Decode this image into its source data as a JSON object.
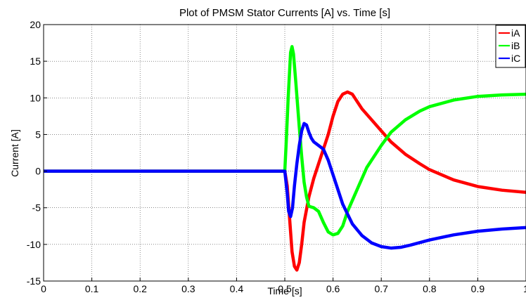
{
  "chart_data": {
    "type": "line",
    "title": "Plot of PMSM Stator Currents [A] vs. Time [s]",
    "xlabel": "Time [s]",
    "ylabel": "Current [A]",
    "xlim": [
      0,
      1
    ],
    "ylim": [
      -15,
      20
    ],
    "grid": true,
    "legend_position": "top-right",
    "x_ticks": [
      0,
      0.1,
      0.2,
      0.3,
      0.4,
      0.5,
      0.6,
      0.7,
      0.8,
      0.9,
      1
    ],
    "x_tick_labels": [
      "0",
      "0.1",
      "0.2",
      "0.3",
      "0.4",
      "0.5",
      "0.6",
      "0.7",
      "0.8",
      "0.9",
      "1"
    ],
    "y_ticks": [
      -15,
      -10,
      -5,
      0,
      5,
      10,
      15,
      20
    ],
    "y_tick_labels": [
      "-15",
      "-10",
      "-5",
      "0",
      "5",
      "10",
      "15",
      "20"
    ],
    "series": [
      {
        "name": "iA",
        "color": "#ff0000",
        "points": [
          [
            0,
            0
          ],
          [
            0.5,
            0
          ],
          [
            0.505,
            -2
          ],
          [
            0.51,
            -6.5
          ],
          [
            0.515,
            -11
          ],
          [
            0.52,
            -13
          ],
          [
            0.525,
            -13.5
          ],
          [
            0.53,
            -12.5
          ],
          [
            0.535,
            -10
          ],
          [
            0.54,
            -7
          ],
          [
            0.55,
            -3.5
          ],
          [
            0.56,
            -1
          ],
          [
            0.57,
            1
          ],
          [
            0.58,
            3
          ],
          [
            0.59,
            5
          ],
          [
            0.6,
            7.5
          ],
          [
            0.61,
            9.5
          ],
          [
            0.62,
            10.5
          ],
          [
            0.63,
            10.8
          ],
          [
            0.64,
            10.5
          ],
          [
            0.65,
            9.5
          ],
          [
            0.66,
            8.5
          ],
          [
            0.68,
            7
          ],
          [
            0.7,
            5.5
          ],
          [
            0.72,
            4
          ],
          [
            0.75,
            2.3
          ],
          [
            0.78,
            1
          ],
          [
            0.8,
            0.2
          ],
          [
            0.85,
            -1.2
          ],
          [
            0.9,
            -2.1
          ],
          [
            0.95,
            -2.6
          ],
          [
            1.0,
            -2.9
          ]
        ]
      },
      {
        "name": "iB",
        "color": "#00ff00",
        "points": [
          [
            0,
            0
          ],
          [
            0.5,
            0
          ],
          [
            0.503,
            4
          ],
          [
            0.507,
            10
          ],
          [
            0.512,
            16.2
          ],
          [
            0.515,
            17
          ],
          [
            0.518,
            16
          ],
          [
            0.523,
            12
          ],
          [
            0.53,
            6
          ],
          [
            0.535,
            2
          ],
          [
            0.54,
            -1.5
          ],
          [
            0.545,
            -3.5
          ],
          [
            0.55,
            -4.8
          ],
          [
            0.56,
            -5
          ],
          [
            0.57,
            -5.5
          ],
          [
            0.58,
            -7
          ],
          [
            0.59,
            -8.3
          ],
          [
            0.6,
            -8.7
          ],
          [
            0.61,
            -8.5
          ],
          [
            0.62,
            -7.5
          ],
          [
            0.63,
            -5.5
          ],
          [
            0.65,
            -2.5
          ],
          [
            0.67,
            0.5
          ],
          [
            0.7,
            3.5
          ],
          [
            0.72,
            5.3
          ],
          [
            0.75,
            7
          ],
          [
            0.78,
            8.2
          ],
          [
            0.8,
            8.8
          ],
          [
            0.85,
            9.7
          ],
          [
            0.9,
            10.2
          ],
          [
            0.95,
            10.4
          ],
          [
            1.0,
            10.5
          ]
        ]
      },
      {
        "name": "iC",
        "color": "#0000ff",
        "points": [
          [
            0,
            0
          ],
          [
            0.5,
            0
          ],
          [
            0.505,
            -3
          ],
          [
            0.508,
            -5.5
          ],
          [
            0.512,
            -6.2
          ],
          [
            0.516,
            -5
          ],
          [
            0.52,
            -2
          ],
          [
            0.525,
            1
          ],
          [
            0.53,
            3.5
          ],
          [
            0.535,
            5.5
          ],
          [
            0.54,
            6.5
          ],
          [
            0.545,
            6.3
          ],
          [
            0.55,
            5.3
          ],
          [
            0.555,
            4.5
          ],
          [
            0.56,
            4
          ],
          [
            0.57,
            3.5
          ],
          [
            0.58,
            3
          ],
          [
            0.59,
            1.5
          ],
          [
            0.6,
            -0.5
          ],
          [
            0.61,
            -2.5
          ],
          [
            0.62,
            -4.5
          ],
          [
            0.64,
            -7.2
          ],
          [
            0.66,
            -8.8
          ],
          [
            0.68,
            -9.8
          ],
          [
            0.7,
            -10.3
          ],
          [
            0.72,
            -10.5
          ],
          [
            0.74,
            -10.4
          ],
          [
            0.76,
            -10.1
          ],
          [
            0.8,
            -9.4
          ],
          [
            0.85,
            -8.7
          ],
          [
            0.9,
            -8.2
          ],
          [
            0.95,
            -7.9
          ],
          [
            1.0,
            -7.7
          ]
        ]
      }
    ]
  }
}
